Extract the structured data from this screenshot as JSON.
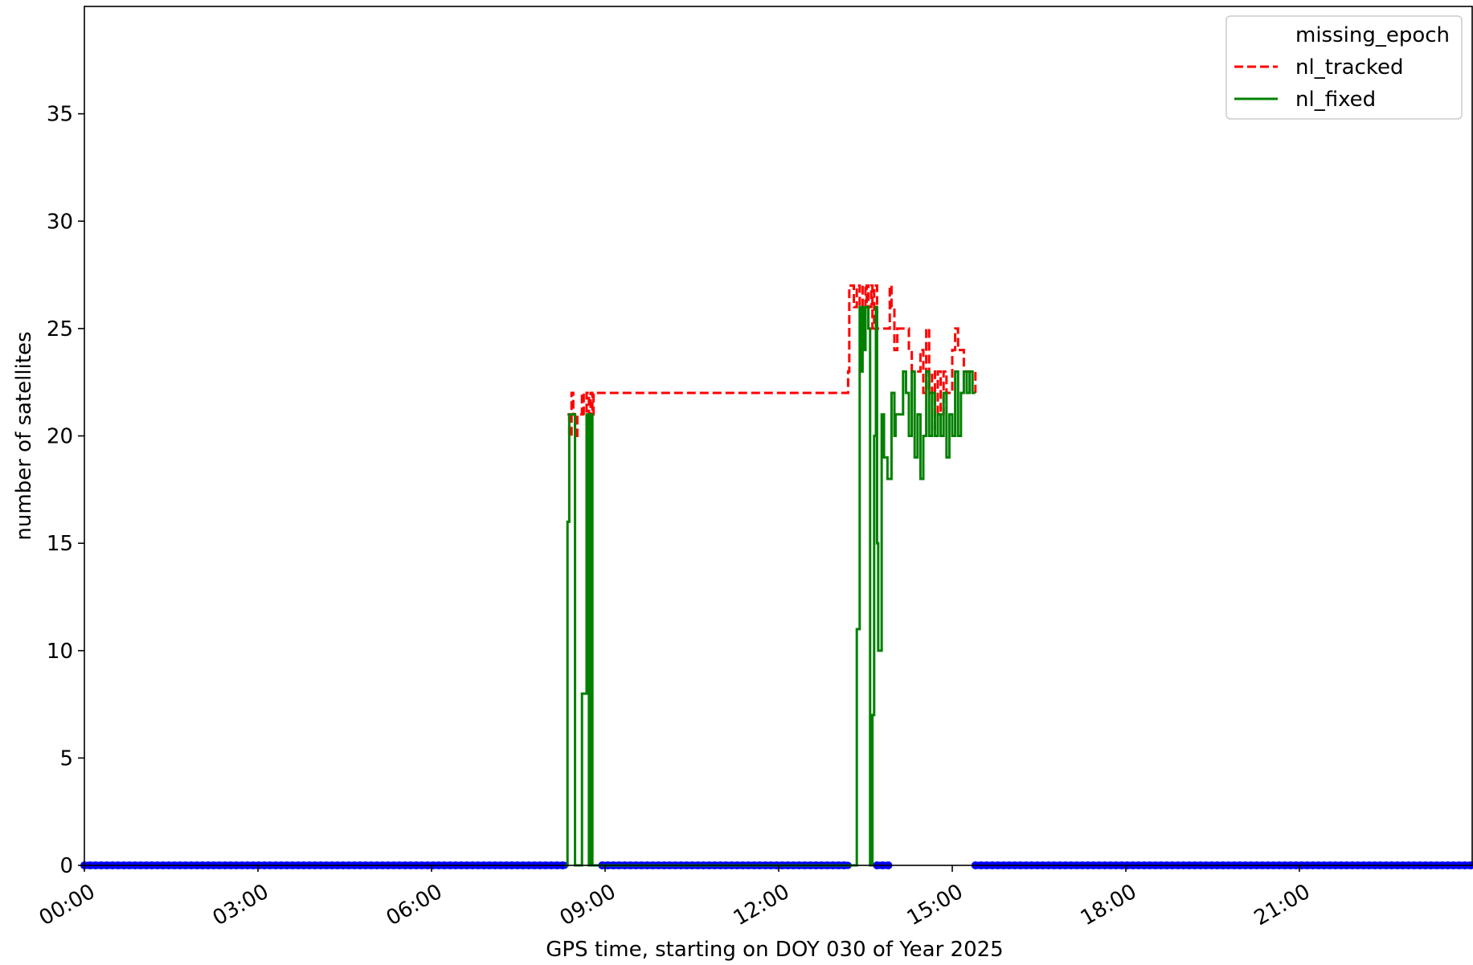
{
  "chart_data": {
    "type": "line",
    "xlabel": "GPS time, starting on DOY 030 of Year 2025",
    "ylabel": "number of satellites",
    "xlim": [
      0,
      24
    ],
    "ylim": [
      0,
      40
    ],
    "x_ticks": [
      {
        "value": 0,
        "label": "00:00"
      },
      {
        "value": 3,
        "label": "03:00"
      },
      {
        "value": 6,
        "label": "06:00"
      },
      {
        "value": 9,
        "label": "09:00"
      },
      {
        "value": 12,
        "label": "12:00"
      },
      {
        "value": 15,
        "label": "15:00"
      },
      {
        "value": 18,
        "label": "18:00"
      },
      {
        "value": 21,
        "label": "21:00"
      }
    ],
    "y_ticks": [
      {
        "value": 0,
        "label": "0"
      },
      {
        "value": 5,
        "label": "5"
      },
      {
        "value": 10,
        "label": "10"
      },
      {
        "value": 15,
        "label": "15"
      },
      {
        "value": 20,
        "label": "20"
      },
      {
        "value": 25,
        "label": "25"
      },
      {
        "value": 30,
        "label": "30"
      },
      {
        "value": 35,
        "label": "35"
      }
    ],
    "legend": {
      "placement": "top-right",
      "entries": [
        "missing_epoch",
        "nl_tracked",
        "nl_fixed"
      ]
    },
    "series": [
      {
        "name": "missing_epoch",
        "style": "markers",
        "color": "#0000ff",
        "segments": [
          {
            "x_start": 0.0,
            "x_end": 8.3,
            "y": 0
          },
          {
            "x_start": 8.95,
            "x_end": 13.2,
            "y": 0
          },
          {
            "x_start": 13.7,
            "x_end": 13.9,
            "y": 0
          },
          {
            "x_start": 15.4,
            "x_end": 24.0,
            "y": 0
          }
        ]
      },
      {
        "name": "nl_tracked",
        "style": "dashed",
        "color": "#ff0000",
        "x": [
          8.35,
          8.38,
          8.42,
          8.45,
          8.48,
          8.52,
          8.55,
          8.6,
          8.63,
          8.68,
          8.72,
          8.75,
          8.78,
          8.8,
          8.85,
          8.9,
          13.2,
          13.22,
          13.3,
          13.35,
          13.4,
          13.45,
          13.5,
          13.52,
          13.55,
          13.6,
          13.62,
          13.65,
          13.7,
          13.75,
          13.8,
          13.85,
          13.88,
          13.92,
          13.95,
          14.0,
          14.05,
          14.15,
          14.25,
          14.3,
          14.4,
          14.45,
          14.5,
          14.55,
          14.6,
          14.65,
          14.7,
          14.75,
          14.8,
          14.85,
          14.9,
          15.0,
          15.05,
          15.1,
          15.15,
          15.2,
          15.3,
          15.4
        ],
        "y": [
          21,
          20,
          22,
          21,
          20,
          21,
          21,
          22,
          21,
          22,
          21,
          22,
          21,
          22,
          22,
          22,
          23,
          27,
          26,
          27,
          26,
          27,
          26,
          27,
          26,
          27,
          25,
          27,
          25,
          25,
          25,
          25,
          25,
          27,
          26,
          24,
          25,
          25,
          24,
          23,
          23,
          24,
          22,
          25,
          22,
          23,
          20,
          23,
          21,
          23,
          22,
          24,
          25,
          24,
          24,
          23,
          23,
          22
        ]
      },
      {
        "name": "nl_fixed",
        "style": "solid",
        "color": "#008000",
        "x": [
          8.3,
          8.35,
          8.38,
          8.42,
          8.48,
          8.55,
          8.6,
          8.68,
          8.72,
          8.75,
          8.78,
          8.8,
          8.85,
          8.9,
          13.2,
          13.3,
          13.35,
          13.4,
          13.42,
          13.45,
          13.48,
          13.5,
          13.55,
          13.58,
          13.62,
          13.65,
          13.68,
          13.7,
          13.72,
          13.75,
          13.78,
          13.82,
          13.85,
          13.88,
          13.95,
          14.0,
          14.02,
          14.15,
          14.2,
          14.25,
          14.3,
          14.35,
          14.4,
          14.45,
          14.5,
          14.55,
          14.6,
          14.65,
          14.7,
          14.75,
          14.8,
          14.85,
          14.9,
          14.95,
          15.0,
          15.05,
          15.1,
          15.15,
          15.2,
          15.25,
          15.3,
          15.35,
          15.4
        ],
        "y": [
          0,
          16,
          21,
          21,
          0,
          0,
          8,
          21,
          0,
          21,
          0,
          0,
          0,
          0,
          0,
          0,
          11,
          26,
          23,
          26,
          24,
          26,
          25,
          0,
          7,
          20,
          26,
          15,
          10,
          10,
          21,
          19,
          19,
          18,
          22,
          20,
          21,
          23,
          22,
          20,
          23,
          19,
          21,
          18,
          20,
          23,
          20,
          22,
          20,
          21,
          20,
          22,
          19,
          21,
          20,
          23,
          20,
          22,
          23,
          22,
          23,
          22,
          22
        ]
      }
    ]
  }
}
